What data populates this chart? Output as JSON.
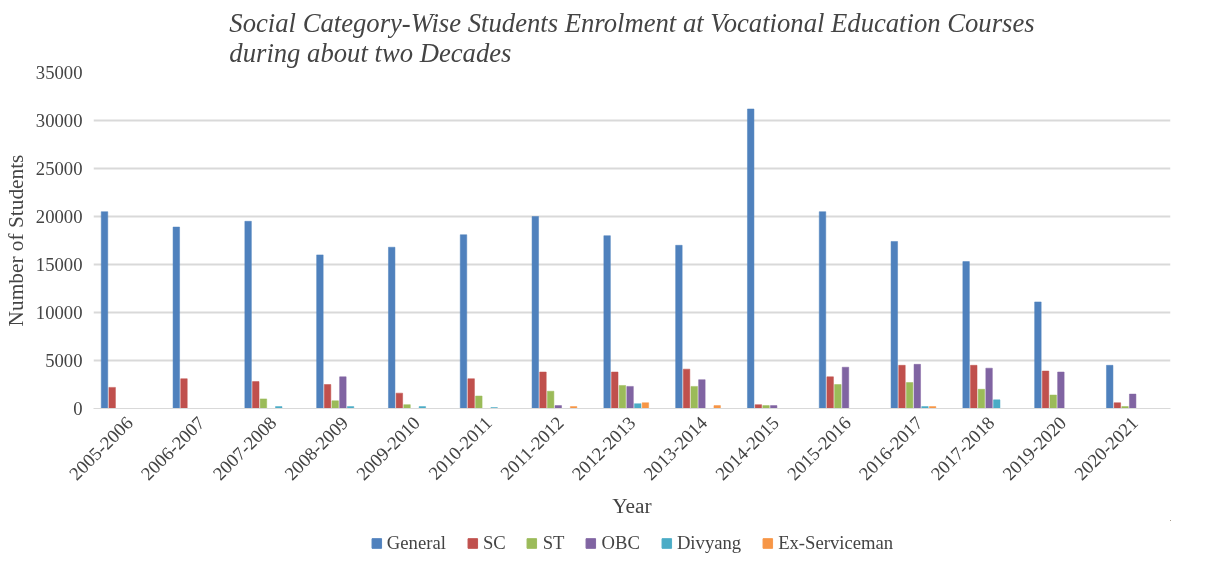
{
  "chart_data": {
    "type": "bar",
    "title": "Social Category-Wise Students Enrolment at Vocational Education Courses\nduring about two Decades",
    "xlabel": "Year",
    "ylabel": "Number of Students",
    "categories": [
      "2005-2006",
      "2006-2007",
      "2007-2008",
      "2008-2009",
      "2009-2010",
      "2010-2011",
      "2011-2012",
      "2012-2013",
      "2013-2014",
      "2014-2015",
      "2015-2016",
      "2016-2017",
      "2017-2018",
      "2019-2020",
      "2020-2021"
    ],
    "series": [
      {
        "name": "General",
        "color": "#4f81bd",
        "values": [
          20500,
          18900,
          19500,
          16000,
          16800,
          18100,
          20000,
          18000,
          17000,
          31200,
          20500,
          17400,
          15300,
          11100,
          4500
        ]
      },
      {
        "name": "SC",
        "color": "#c0504d",
        "values": [
          2200,
          3100,
          2800,
          2500,
          1600,
          3100,
          3800,
          3800,
          4100,
          400,
          3300,
          4500,
          4500,
          3900,
          600
        ]
      },
      {
        "name": "ST",
        "color": "#9bbb59",
        "values": [
          0,
          0,
          1000,
          800,
          400,
          1300,
          1800,
          2400,
          2300,
          300,
          2500,
          2700,
          2000,
          1400,
          200
        ]
      },
      {
        "name": "OBC",
        "color": "#8064a2",
        "values": [
          0,
          0,
          0,
          3300,
          0,
          0,
          300,
          2300,
          3000,
          300,
          4300,
          4600,
          4200,
          3800,
          1500
        ]
      },
      {
        "name": "Divyang",
        "color": "#4bacc6",
        "values": [
          0,
          0,
          200,
          200,
          200,
          100,
          0,
          500,
          0,
          0,
          0,
          200,
          900,
          0,
          0
        ]
      },
      {
        "name": "Ex-Serviceman",
        "color": "#f79646",
        "values": [
          0,
          0,
          0,
          0,
          0,
          0,
          200,
          600,
          300,
          0,
          0,
          200,
          0,
          0,
          0
        ]
      }
    ],
    "ylim": [
      0,
      35000
    ],
    "yticks": [
      0,
      5000,
      10000,
      15000,
      20000,
      25000,
      30000,
      35000
    ],
    "grid": "y",
    "legend": "bottom"
  }
}
